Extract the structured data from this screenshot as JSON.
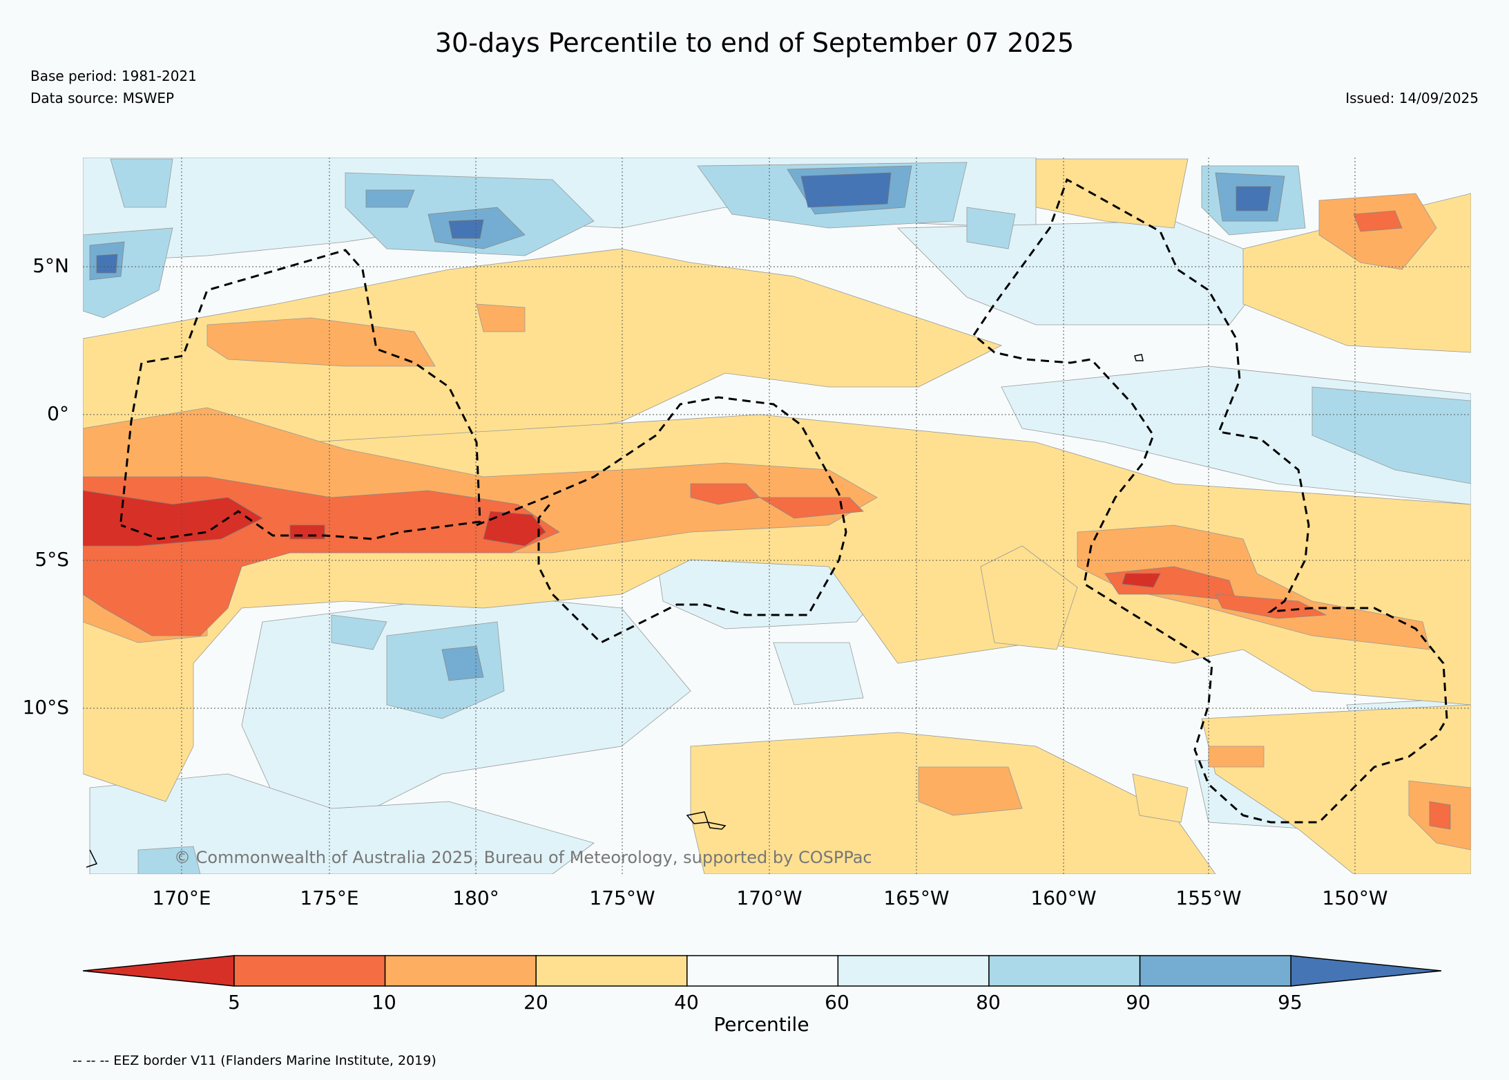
{
  "title": "30-days Percentile to end of September 07 2025",
  "base_period": "Base period: 1981-2021",
  "data_source": "Data source: MSWEP",
  "issued": "Issued: 14/09/2025",
  "copyright": "© Commonwealth of Australia 2025, Bureau of Meteorology, supported by COSPPac",
  "footnote": "-- -- -- EEZ border V11 (Flanders Marine Institute, 2019)",
  "map": {
    "lat_labels": [
      "5°N",
      "0°",
      "5°S",
      "10°S"
    ],
    "lon_labels": [
      "170°E",
      "175°E",
      "180°",
      "175°W",
      "170°W",
      "165°W",
      "160°W",
      "155°W",
      "150°W"
    ]
  },
  "colorbar": {
    "title": "Percentile",
    "ticks": [
      "5",
      "10",
      "20",
      "40",
      "60",
      "80",
      "90",
      "95"
    ],
    "colors": [
      "#d73027",
      "#f46d43",
      "#fdae61",
      "#fee090",
      "#f7fbfc",
      "#e0f3f8",
      "#abd9e9",
      "#74add1",
      "#4575b4"
    ]
  }
}
